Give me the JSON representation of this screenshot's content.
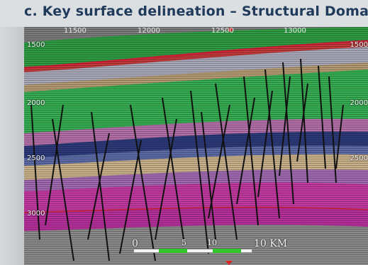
{
  "title": "c. Key surface delineation – Structural Domain",
  "top_ticks": [
    "11500",
    "12000",
    "12500",
    "13000"
  ],
  "depth_labels_left": [
    "1500",
    "2000",
    "2500",
    "3000"
  ],
  "depth_labels_right": [
    "1500",
    "2000",
    "2500"
  ],
  "scale_bar": {
    "start_label": "0",
    "tick_labels": [
      "5",
      "10"
    ],
    "end_label": "10 KM"
  },
  "colors": {
    "title": "#1f3a5a",
    "green_layer": "#33b54a",
    "magenta_layer": "#c23aa0",
    "tan_layer": "#b39a72",
    "navy_layer": "#2c3a7a",
    "red_horizon": "#c0392b",
    "faults": "#111111",
    "scale_green": "#31c52a"
  }
}
